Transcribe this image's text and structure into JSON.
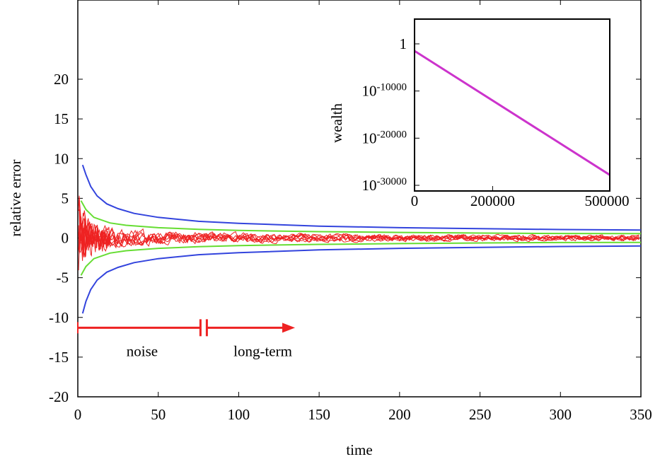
{
  "chart_data": [
    {
      "type": "line",
      "xlabel": "time",
      "ylabel": "relative error",
      "xlim": [
        0,
        350
      ],
      "ylim": [
        -20,
        20
      ],
      "x_ticks": [
        "0",
        "50",
        "100",
        "150",
        "200",
        "250",
        "300",
        "350"
      ],
      "y_ticks": [
        "-20",
        "-15",
        "-10",
        "-5",
        "0",
        "5",
        "10",
        "15",
        "20"
      ],
      "grid": false,
      "series": [
        {
          "color": "#3344dd",
          "description": "upper envelope",
          "x": [
            3,
            5,
            8,
            12,
            18,
            25,
            35,
            50,
            75,
            100,
            150,
            200,
            250,
            300,
            350
          ],
          "y": [
            9.2,
            8.0,
            6.5,
            5.3,
            4.3,
            3.7,
            3.1,
            2.6,
            2.1,
            1.85,
            1.5,
            1.3,
            1.18,
            1.07,
            1.0
          ]
        },
        {
          "color": "#3344dd",
          "description": "lower envelope",
          "x": [
            3,
            5,
            8,
            12,
            18,
            25,
            35,
            50,
            75,
            100,
            150,
            200,
            250,
            300,
            350
          ],
          "y": [
            -9.5,
            -8.0,
            -6.5,
            -5.3,
            -4.3,
            -3.7,
            -3.1,
            -2.6,
            -2.1,
            -1.85,
            -1.5,
            -1.3,
            -1.18,
            -1.07,
            -1.0
          ]
        },
        {
          "color": "#66dd33",
          "description": "upper inner envelope",
          "x": [
            2,
            5,
            10,
            20,
            30,
            50,
            75,
            100,
            150,
            200,
            250,
            300,
            350
          ],
          "y": [
            4.7,
            3.6,
            2.6,
            1.9,
            1.6,
            1.3,
            1.1,
            0.95,
            0.8,
            0.7,
            0.62,
            0.57,
            0.55
          ]
        },
        {
          "color": "#66dd33",
          "description": "lower inner envelope",
          "x": [
            2,
            5,
            10,
            20,
            30,
            50,
            75,
            100,
            150,
            200,
            250,
            300,
            350
          ],
          "y": [
            -4.7,
            -3.6,
            -2.6,
            -1.9,
            -1.6,
            -1.3,
            -1.1,
            -0.95,
            -0.8,
            -0.7,
            -0.62,
            -0.57,
            -0.55
          ]
        }
      ],
      "noise_traces": {
        "color": "#ee2222",
        "count": 8,
        "description": "fluctuating relative error realizations decaying in amplitude"
      },
      "annotations": {
        "noise": "noise",
        "long_term": "long-term",
        "arrow_x_start": 0,
        "break_x": 78,
        "arrow_x_end": 135,
        "arrow_y": -11.3,
        "arrow_color": "#ee2222"
      }
    },
    {
      "type": "line",
      "ylabel": "wealth",
      "y_scale": "log",
      "xlim": [
        0,
        500000
      ],
      "x_ticks": [
        "0",
        "200000",
        "500000"
      ],
      "y_ticks": [
        {
          "base": "1",
          "exp": ""
        },
        {
          "base": "10",
          "exp": "-10000"
        },
        {
          "base": "10",
          "exp": "-20000"
        },
        {
          "base": "10",
          "exp": "-30000"
        }
      ],
      "series": [
        {
          "color": "#cc33cc",
          "x": [
            0,
            500000
          ],
          "log10_y": [
            -1500,
            -27800
          ]
        }
      ]
    }
  ]
}
